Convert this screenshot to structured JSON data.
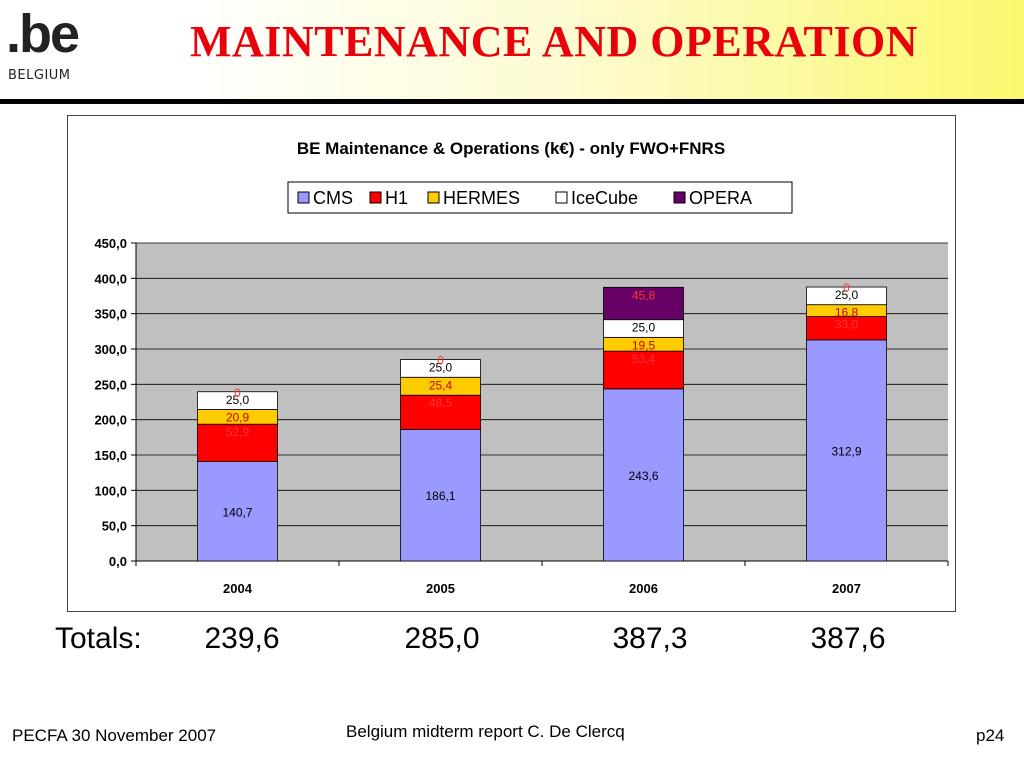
{
  "header": {
    "logo_text": ".be",
    "logo_subtext": "BELGIUM",
    "title": "Maintenance and Operation"
  },
  "colors": {
    "title": "#e8000b",
    "cms": "#9999ff",
    "h1": "#ff0000",
    "hermes": "#ffcc00",
    "icecube": "#ffffff",
    "opera": "#660066",
    "plot_bg": "#c0c0c0"
  },
  "chart_data": {
    "type": "bar",
    "stacked": true,
    "title": "BE Maintenance & Operations (k€) - only FWO+FNRS",
    "categories": [
      "2004",
      "2005",
      "2006",
      "2007"
    ],
    "series": [
      {
        "name": "CMS",
        "color": "#9999ff",
        "values": [
          140.7,
          186.1,
          243.6,
          312.9
        ],
        "labels": [
          "140,7",
          "186,1",
          "243,6",
          "312,9"
        ]
      },
      {
        "name": "H1",
        "color": "#ff0000",
        "values": [
          52.9,
          48.5,
          53.4,
          33.0
        ],
        "labels": [
          "52,9",
          "48,5",
          "53,4",
          "33,0"
        ]
      },
      {
        "name": "HERMES",
        "color": "#ffcc00",
        "values": [
          20.9,
          25.4,
          19.5,
          16.8
        ],
        "labels": [
          "20,9",
          "25,4",
          "19,5",
          "16,8"
        ]
      },
      {
        "name": "IceCube",
        "color": "#ffffff",
        "values": [
          25.0,
          25.0,
          25.0,
          25.0
        ],
        "labels": [
          "25,0",
          "25,0",
          "25,0",
          "25,0"
        ]
      },
      {
        "name": "OPERA",
        "color": "#660066",
        "values": [
          0,
          0,
          45.8,
          0
        ],
        "labels": [
          "0",
          "0",
          "45,8",
          "0"
        ]
      }
    ],
    "ylim": [
      0,
      450
    ],
    "yticks": [
      "0,0",
      "50,0",
      "100,0",
      "150,0",
      "200,0",
      "250,0",
      "300,0",
      "350,0",
      "400,0",
      "450,0"
    ],
    "ytick_values": [
      0,
      50,
      100,
      150,
      200,
      250,
      300,
      350,
      400,
      450
    ],
    "grid": true,
    "legend_position": "top"
  },
  "totals": {
    "label": "Totals:",
    "values": [
      "239,6",
      "285,0",
      "387,3",
      "387,6"
    ]
  },
  "footer": {
    "left": "PECFA 30 November 2007",
    "center": "Belgium midterm report C. De Clercq",
    "right": "p24"
  }
}
